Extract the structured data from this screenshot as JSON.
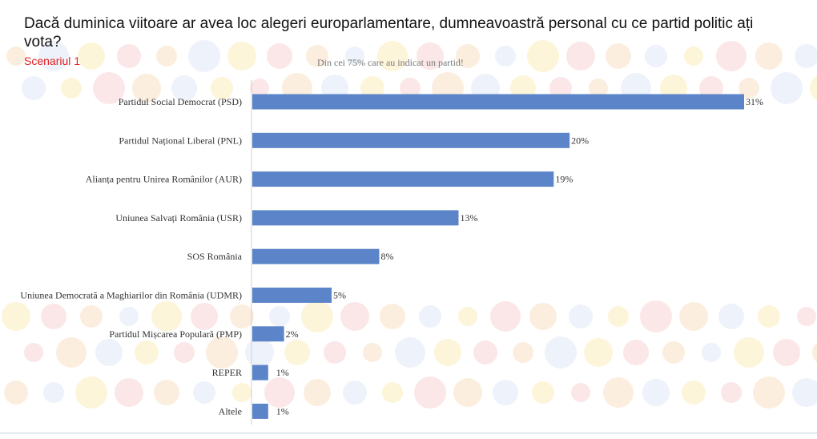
{
  "title": "Dacă duminica viitoare ar avea loc alegeri europarlamentare, dumneavoastră personal cu ce partid politic ați vota?",
  "subtitle": "Scenariul 1",
  "note": "Din cei 75% care au indicat un partid!",
  "colors": {
    "bar": "#5b84c9",
    "subtitle": "#e02020"
  },
  "chart_data": {
    "type": "bar",
    "orientation": "horizontal",
    "categories": [
      "Partidul Social Democrat (PSD)",
      "Partidul Național Liberal (PNL)",
      "Alianța pentru Unirea Românilor (AUR)",
      "Uniunea Salvați România (USR)",
      "SOS România",
      "Uniunea Democrată a Maghiarilor din România (UDMR)",
      "Partidul Mișcarea Populară (PMP)",
      "REPER",
      "Altele"
    ],
    "values": [
      31,
      20,
      19,
      13,
      8,
      5,
      2,
      1,
      1
    ],
    "value_labels": [
      "31%",
      "20%",
      "19%",
      "13%",
      "8%",
      "5%",
      "2%",
      "1%",
      "1%"
    ],
    "xlim": [
      0,
      31
    ],
    "grid": false,
    "legend": "none"
  }
}
